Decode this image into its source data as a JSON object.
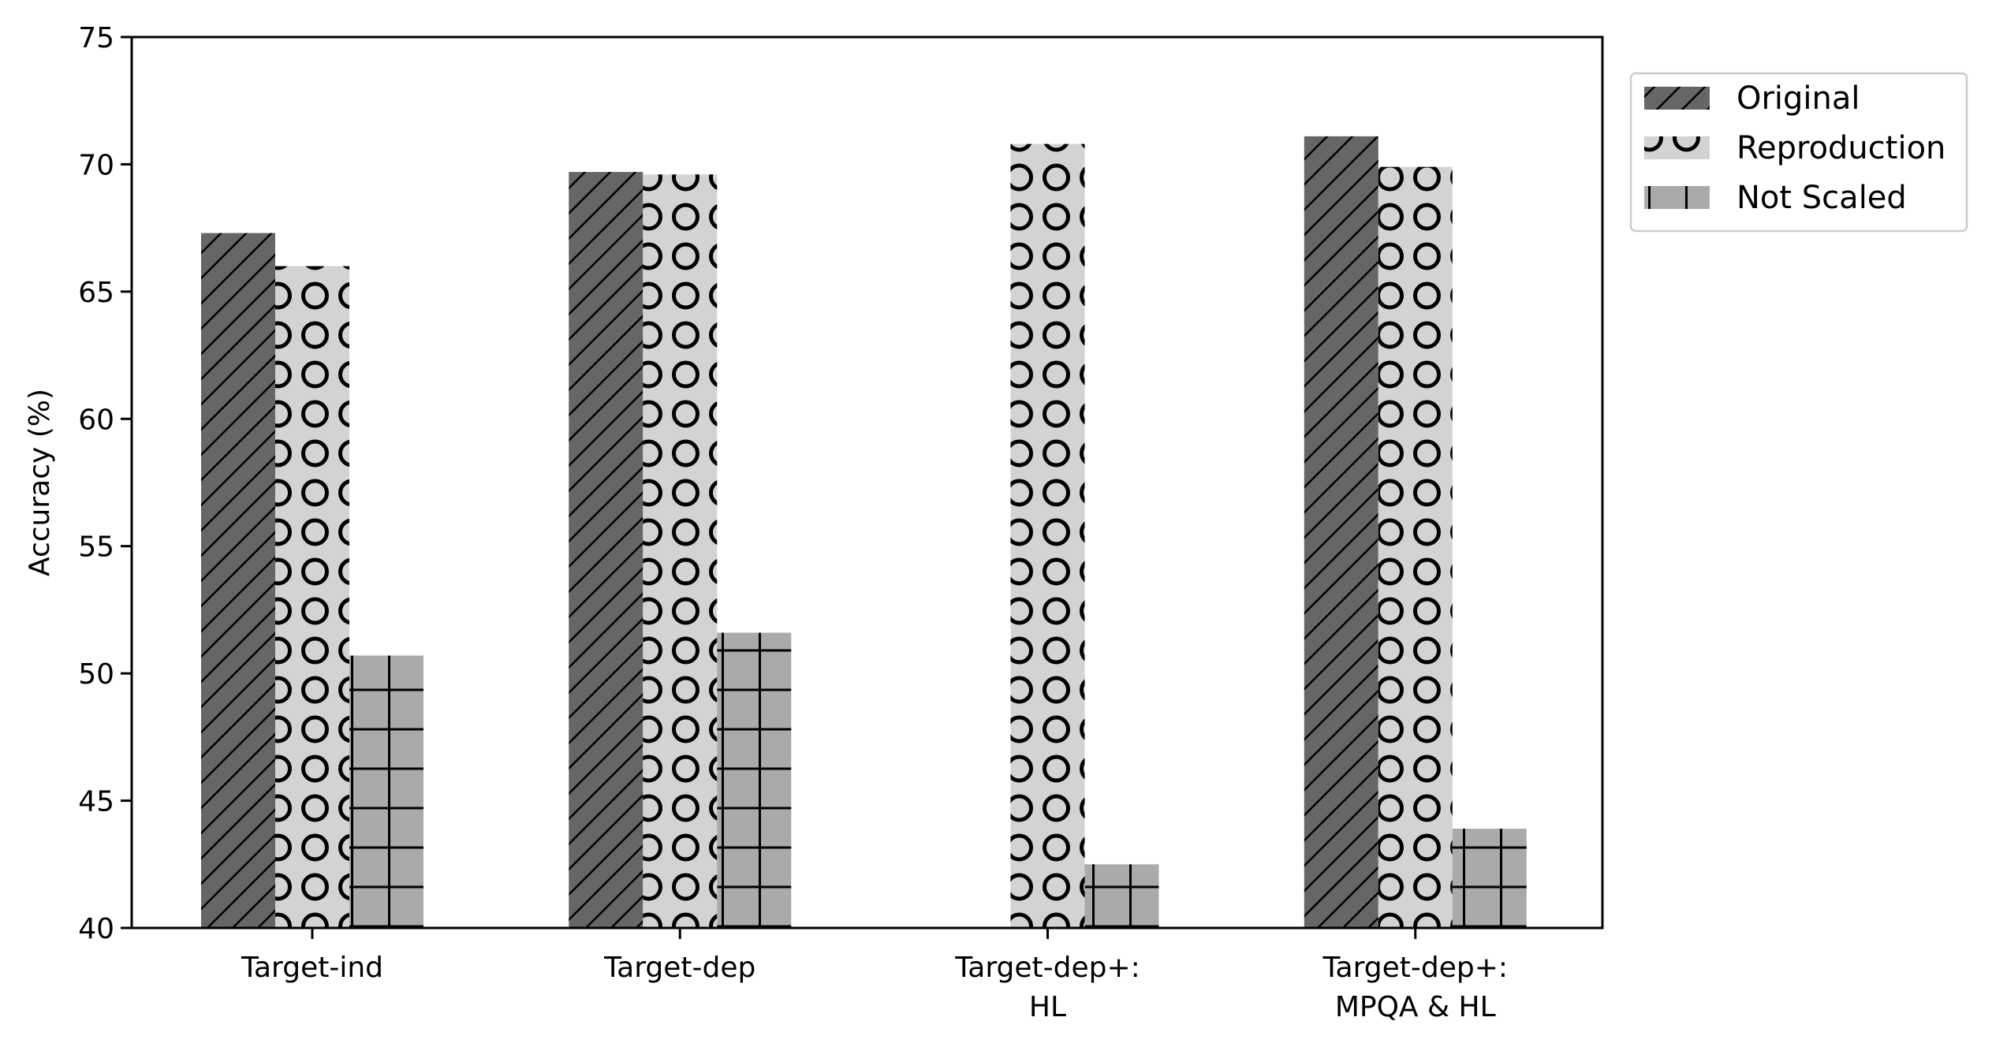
{
  "chart_data": {
    "type": "bar",
    "title": "",
    "xlabel": "",
    "ylabel": "Accuracy (%)",
    "ylim": [
      40,
      75
    ],
    "yticks": [
      40,
      45,
      50,
      55,
      60,
      65,
      70,
      75
    ],
    "grid": false,
    "legend_position": "outside top-right",
    "categories": [
      [
        "Target-ind"
      ],
      [
        "Target-dep"
      ],
      [
        "Target-dep+:",
        "HL"
      ],
      [
        "Target-dep+:",
        "MPQA & HL"
      ]
    ],
    "series": [
      {
        "name": "Original",
        "values": [
          67.3,
          69.7,
          null,
          71.1
        ],
        "color": "#666666",
        "pattern": "diagonal-hatch"
      },
      {
        "name": "Reproduction",
        "values": [
          66.0,
          69.6,
          70.8,
          69.9
        ],
        "color": "#d3d3d3",
        "pattern": "circles"
      },
      {
        "name": "Not Scaled",
        "values": [
          50.7,
          51.6,
          42.5,
          43.9
        ],
        "color": "#aaaaaa",
        "pattern": "grid"
      }
    ]
  }
}
